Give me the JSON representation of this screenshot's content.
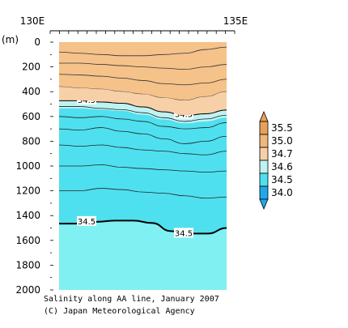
{
  "chart_data": {
    "type": "heatmap",
    "title": "Salinity along AA line, January 2007",
    "credit": "(C) Japan Meteorological Agency",
    "x_ticks": [
      "130E",
      "135E"
    ],
    "y_unit": "(m)",
    "y_ticks": [
      0,
      200,
      400,
      600,
      800,
      1000,
      1200,
      1400,
      1600,
      1800,
      2000
    ],
    "ylim": [
      2000,
      0
    ],
    "colorbar": {
      "labels": [
        "35.5",
        "35.0",
        "34.7",
        "34.6",
        "34.5",
        "34.0"
      ],
      "colors": [
        "#e8a05a",
        "#f0b878",
        "#f7d0a8",
        "#bff2f2",
        "#4fe0ef",
        "#22a8ea"
      ]
    },
    "contour_labels": [
      "34.5",
      "34.5",
      "34.5",
      "34.5"
    ],
    "contours": {
      "upper_34_5_depth_m": [
        470,
        470,
        480,
        490,
        520,
        560,
        590,
        575,
        545
      ],
      "lower_34_5_depth_m": [
        1465,
        1465,
        1450,
        1440,
        1440,
        1460,
        1525,
        1545,
        1545,
        1500
      ],
      "top_34_7_depth_m": [
        360,
        370,
        380,
        400,
        420,
        450,
        470,
        440,
        400
      ]
    },
    "colors": {
      "salty_top": "#f5c28a",
      "salty_mid": "#f7d0a8",
      "fresh_band": "#bff2f2",
      "fresh_main": "#4fe0ef",
      "deep": "#80f0f2"
    }
  }
}
